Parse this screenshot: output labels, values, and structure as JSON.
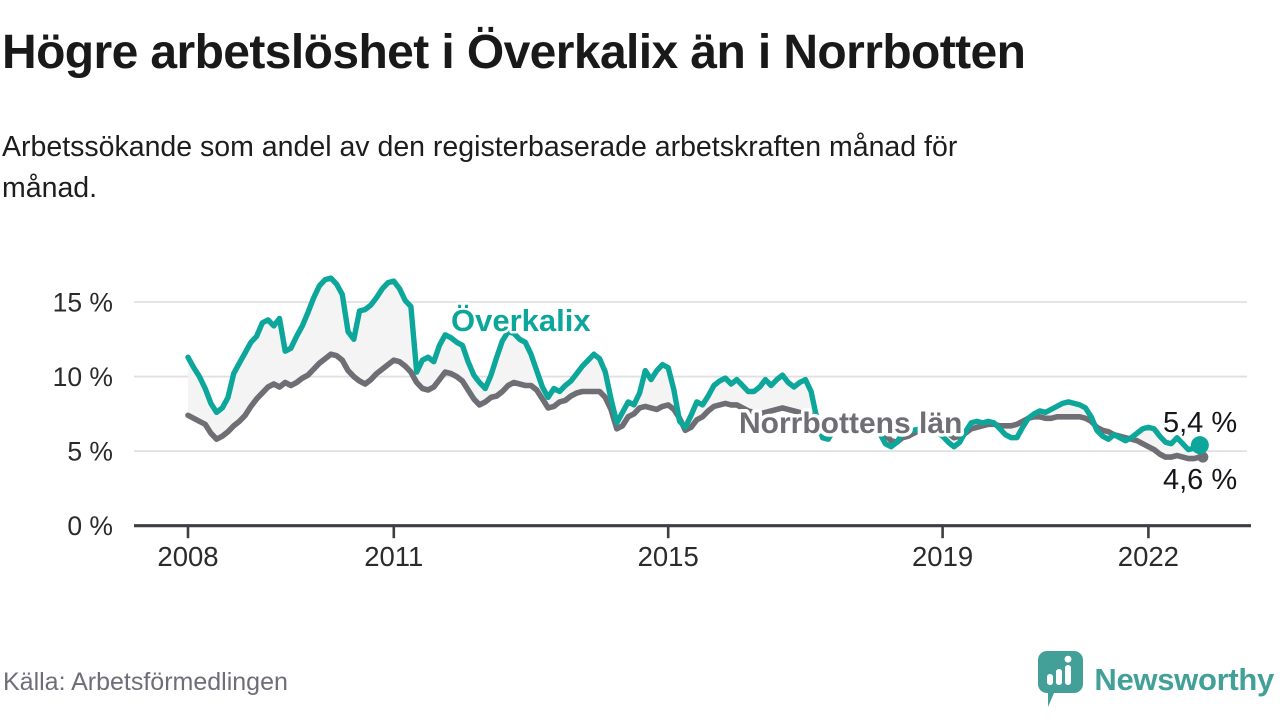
{
  "header": {
    "title": "Högre arbetslöshet i Överkalix än i Norrbotten",
    "subtitle": "Arbetssökande som andel av den registerbaserade arbetskraften månad för månad."
  },
  "chart_data": {
    "type": "line",
    "unit": "percent",
    "x_start": "2008-01",
    "x_frequency": "monthly",
    "x_tick_labels": [
      "2008",
      "2011",
      "2015",
      "2019",
      "2022"
    ],
    "y_tick_labels": [
      "0 %",
      "5 %",
      "10 %",
      "15 %"
    ],
    "y_tick_values": [
      0,
      5,
      10,
      15
    ],
    "ylim": [
      0,
      17.6
    ],
    "grid": true,
    "legend": "inline-labels",
    "band_fill": "#f4f4f4",
    "gridline_color": "#e0e0e0",
    "axis_color": "#3e3e43",
    "tick_label_color": "#2b2b2b",
    "series": [
      {
        "name": "Överkalix",
        "color": "#0ca69b",
        "end_label": "5,4 %",
        "end_value": 5.4,
        "values": [
          11.3,
          10.6,
          10.0,
          9.2,
          8.2,
          7.6,
          7.9,
          8.6,
          10.2,
          10.9,
          11.6,
          12.3,
          12.7,
          13.6,
          13.8,
          13.4,
          13.9,
          11.7,
          11.9,
          12.7,
          13.4,
          14.3,
          15.3,
          16.1,
          16.5,
          16.6,
          16.2,
          15.5,
          13.0,
          12.5,
          14.4,
          14.5,
          14.8,
          15.3,
          15.9,
          16.3,
          16.4,
          15.9,
          15.1,
          14.7,
          10.3,
          11.1,
          11.3,
          11.0,
          12.1,
          12.8,
          12.6,
          12.3,
          12.1,
          11.0,
          10.1,
          9.6,
          9.2,
          10.1,
          11.3,
          12.4,
          13.0,
          12.9,
          12.5,
          12.3,
          11.5,
          10.4,
          9.3,
          8.6,
          9.2,
          9.0,
          9.4,
          9.7,
          10.2,
          10.7,
          11.1,
          11.5,
          11.2,
          10.3,
          8.5,
          6.9,
          7.6,
          8.3,
          8.1,
          8.9,
          10.4,
          9.8,
          10.4,
          10.8,
          10.6,
          9.1,
          7.0,
          6.6,
          7.4,
          8.3,
          8.1,
          8.7,
          9.4,
          9.7,
          9.9,
          9.5,
          9.8,
          9.4,
          9.0,
          9.0,
          9.3,
          9.8,
          9.4,
          9.8,
          10.1,
          9.6,
          9.3,
          9.6,
          9.8,
          9.0,
          7.2,
          5.9,
          5.8,
          6.5,
          6.6,
          6.7,
          6.9,
          7.0,
          7.0,
          6.8,
          6.6,
          6.2,
          5.5,
          5.3,
          5.6,
          6.2,
          6.3,
          6.4,
          6.5,
          6.7,
          6.7,
          6.3,
          6.0,
          5.6,
          5.3,
          5.6,
          6.3,
          6.9,
          7.0,
          6.9,
          7.0,
          6.9,
          6.5,
          6.1,
          5.9,
          5.9,
          6.6,
          7.2,
          7.5,
          7.7,
          7.6,
          7.8,
          8.0,
          8.2,
          8.3,
          8.2,
          8.1,
          7.9,
          7.3,
          6.4,
          6.0,
          5.8,
          6.1,
          5.9,
          5.7,
          5.9,
          6.2,
          6.5,
          6.6,
          6.5,
          6.0,
          5.6,
          5.5,
          5.9,
          5.5,
          5.1,
          5.2,
          5.4
        ]
      },
      {
        "name": "Norrbottens län",
        "color": "#6e6e74",
        "end_label": "4,6 %",
        "end_value": 4.6,
        "values": [
          7.4,
          7.2,
          7.0,
          6.8,
          6.2,
          5.8,
          6.0,
          6.3,
          6.7,
          7.0,
          7.4,
          8.0,
          8.5,
          8.9,
          9.3,
          9.5,
          9.3,
          9.6,
          9.4,
          9.6,
          9.9,
          10.1,
          10.5,
          10.9,
          11.2,
          11.5,
          11.4,
          11.1,
          10.4,
          10.0,
          9.7,
          9.5,
          9.8,
          10.2,
          10.5,
          10.8,
          11.1,
          11.0,
          10.7,
          10.3,
          9.6,
          9.2,
          9.1,
          9.3,
          9.8,
          10.3,
          10.2,
          10.0,
          9.7,
          9.1,
          8.5,
          8.1,
          8.3,
          8.6,
          8.7,
          9.0,
          9.4,
          9.6,
          9.5,
          9.4,
          9.4,
          9.1,
          8.5,
          7.9,
          8.0,
          8.3,
          8.4,
          8.7,
          8.9,
          9.0,
          9.0,
          9.0,
          9.0,
          8.6,
          7.8,
          6.5,
          6.7,
          7.3,
          7.5,
          7.9,
          8.0,
          7.9,
          7.8,
          8.0,
          8.1,
          7.8,
          7.2,
          6.4,
          6.6,
          7.1,
          7.3,
          7.7,
          8.0,
          8.1,
          8.2,
          8.1,
          8.1,
          7.9,
          7.7,
          7.6,
          7.5,
          7.6,
          7.7,
          7.8,
          7.9,
          7.8,
          7.7,
          7.6,
          7.5,
          7.4,
          7.2,
          6.9,
          6.6,
          6.5,
          6.4,
          6.6,
          6.7,
          6.8,
          6.8,
          6.7,
          6.6,
          6.4,
          6.1,
          5.7,
          5.6,
          5.9,
          6.0,
          6.2,
          6.4,
          6.5,
          6.5,
          6.4,
          6.4,
          6.2,
          5.9,
          6.0,
          6.2,
          6.5,
          6.6,
          6.7,
          6.8,
          6.8,
          6.7,
          6.7,
          6.7,
          6.8,
          7.0,
          7.2,
          7.3,
          7.3,
          7.2,
          7.2,
          7.3,
          7.3,
          7.3,
          7.3,
          7.3,
          7.2,
          7.0,
          6.6,
          6.4,
          6.3,
          6.1,
          6.0,
          5.9,
          5.8,
          5.7,
          5.5,
          5.3,
          5.1,
          4.8,
          4.6,
          4.6,
          4.7,
          4.6,
          4.5,
          4.5,
          4.6
        ]
      }
    ]
  },
  "footer": {
    "source": "Källa: Arbetsförmedlingen",
    "brand": "Newsworthy"
  },
  "colors": {
    "accent_teal": "#0ca69b",
    "line_gray": "#6e6e74",
    "logo_teal": "#43a098"
  }
}
